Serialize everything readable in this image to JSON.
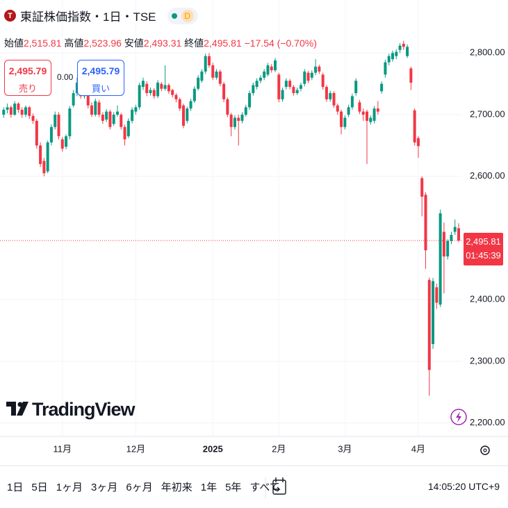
{
  "header": {
    "icon": "T",
    "title": "東証株価指数・1日・TSE",
    "badge": "D",
    "ohlc": [
      {
        "label": "始値",
        "value": "2,515.81"
      },
      {
        "label": "高値",
        "value": "2,523.96"
      },
      {
        "label": "安値",
        "value": "2,493.31"
      },
      {
        "label": "終値",
        "value": "2,495.81"
      }
    ],
    "change": "−17.54 (−0.70%)"
  },
  "trade": {
    "sell_price": "2,495.79",
    "sell_label": "売り",
    "spread": "0.00",
    "buy_price": "2,495.79",
    "buy_label": "買い"
  },
  "logo": "TradingView",
  "toolbar": {
    "periods": [
      "1日",
      "5日",
      "1ヶ月",
      "3ヶ月",
      "6ヶ月",
      "年初来",
      "1年",
      "5年",
      "すべて"
    ],
    "clock": "14:05:20 UTC+9"
  },
  "chart_data": {
    "type": "candlestick",
    "up_color": "#089981",
    "down_color": "#f23645",
    "grid": true,
    "ylim": [
      2177,
      2886
    ],
    "yticks": [
      {
        "value": 2200,
        "label": "2,200.00"
      },
      {
        "value": 2300,
        "label": "2,300.00"
      },
      {
        "value": 2400,
        "label": "2,400.00"
      },
      {
        "value": 2600,
        "label": "2,600.00"
      },
      {
        "value": 2700,
        "label": "2,700.00"
      },
      {
        "value": 2800,
        "label": "2,800.00"
      }
    ],
    "last_price": {
      "value": 2495.81,
      "label": "2,495.81",
      "countdown": "01:45:39"
    },
    "categories": [
      null,
      null,
      null,
      null,
      null,
      null,
      null,
      null,
      null,
      null,
      null,
      null,
      null,
      null,
      null,
      null,
      "11月",
      null,
      null,
      null,
      null,
      null,
      null,
      null,
      null,
      null,
      null,
      null,
      null,
      null,
      null,
      null,
      null,
      null,
      null,
      null,
      "12月",
      null,
      null,
      null,
      null,
      null,
      null,
      null,
      null,
      null,
      null,
      null,
      null,
      null,
      null,
      null,
      null,
      null,
      null,
      null,
      null,
      "2025",
      null,
      null,
      null,
      null,
      null,
      null,
      null,
      null,
      null,
      null,
      null,
      null,
      null,
      null,
      null,
      null,
      null,
      "2月",
      null,
      null,
      null,
      null,
      null,
      null,
      null,
      null,
      null,
      null,
      null,
      null,
      null,
      null,
      null,
      null,
      null,
      "3月",
      null,
      null,
      null,
      null,
      null,
      null,
      null,
      null,
      null,
      null,
      null,
      null,
      null,
      null,
      null,
      null,
      null,
      null,
      null,
      "4月",
      null,
      null,
      null,
      null,
      null,
      null,
      null,
      null,
      null,
      null,
      null
    ],
    "ohlc": [
      [
        2700,
        2712,
        2695,
        2708
      ],
      [
        2708,
        2718,
        2702,
        2712
      ],
      [
        2712,
        2715,
        2695,
        2700
      ],
      [
        2700,
        2722,
        2698,
        2718
      ],
      [
        2718,
        2720,
        2703,
        2708
      ],
      [
        2708,
        2712,
        2695,
        2700
      ],
      [
        2700,
        2715,
        2696,
        2712
      ],
      [
        2712,
        2714,
        2693,
        2698
      ],
      [
        2698,
        2702,
        2685,
        2690
      ],
      [
        2690,
        2693,
        2645,
        2650
      ],
      [
        2650,
        2655,
        2615,
        2620
      ],
      [
        2625,
        2630,
        2600,
        2605
      ],
      [
        2608,
        2658,
        2605,
        2655
      ],
      [
        2655,
        2684,
        2650,
        2680
      ],
      [
        2680,
        2705,
        2676,
        2700
      ],
      [
        2700,
        2704,
        2660,
        2665
      ],
      [
        2660,
        2664,
        2640,
        2645
      ],
      [
        2648,
        2668,
        2644,
        2665
      ],
      [
        2665,
        2714,
        2660,
        2710
      ],
      [
        2715,
        2740,
        2712,
        2735
      ],
      [
        2735,
        2760,
        2730,
        2752
      ],
      [
        2748,
        2752,
        2726,
        2730
      ],
      [
        2730,
        2750,
        2726,
        2745
      ],
      [
        2745,
        2748,
        2710,
        2715
      ],
      [
        2715,
        2720,
        2696,
        2700
      ],
      [
        2700,
        2726,
        2697,
        2722
      ],
      [
        2720,
        2724,
        2696,
        2700
      ],
      [
        2700,
        2704,
        2685,
        2690
      ],
      [
        2692,
        2709,
        2688,
        2705
      ],
      [
        2705,
        2708,
        2676,
        2680
      ],
      [
        2685,
        2704,
        2682,
        2700
      ],
      [
        2700,
        2715,
        2697,
        2705
      ],
      [
        2700,
        2703,
        2676,
        2680
      ],
      [
        2680,
        2684,
        2650,
        2660
      ],
      [
        2665,
        2694,
        2662,
        2690
      ],
      [
        2690,
        2712,
        2686,
        2708
      ],
      [
        2705,
        2716,
        2700,
        2712
      ],
      [
        2712,
        2752,
        2708,
        2748
      ],
      [
        2745,
        2760,
        2740,
        2755
      ],
      [
        2750,
        2754,
        2730,
        2735
      ],
      [
        2735,
        2744,
        2731,
        2740
      ],
      [
        2740,
        2743,
        2726,
        2730
      ],
      [
        2730,
        2756,
        2727,
        2752
      ],
      [
        2750,
        2753,
        2738,
        2742
      ],
      [
        2742,
        2780,
        2739,
        2748
      ],
      [
        2748,
        2751,
        2734,
        2738
      ],
      [
        2740,
        2742,
        2728,
        2732
      ],
      [
        2732,
        2735,
        2720,
        2725
      ],
      [
        2725,
        2728,
        2706,
        2710
      ],
      [
        2715,
        2718,
        2678,
        2682
      ],
      [
        2690,
        2713,
        2686,
        2710
      ],
      [
        2710,
        2726,
        2706,
        2722
      ],
      [
        2722,
        2746,
        2719,
        2742
      ],
      [
        2742,
        2764,
        2739,
        2760
      ],
      [
        2755,
        2774,
        2752,
        2770
      ],
      [
        2770,
        2799,
        2766,
        2795
      ],
      [
        2795,
        2800,
        2776,
        2780
      ],
      [
        2780,
        2784,
        2756,
        2760
      ],
      [
        2760,
        2774,
        2757,
        2770
      ],
      [
        2770,
        2773,
        2746,
        2750
      ],
      [
        2750,
        2753,
        2720,
        2725
      ],
      [
        2725,
        2728,
        2696,
        2700
      ],
      [
        2700,
        2703,
        2665,
        2680
      ],
      [
        2680,
        2699,
        2676,
        2695
      ],
      [
        2695,
        2700,
        2650,
        2690
      ],
      [
        2690,
        2704,
        2686,
        2700
      ],
      [
        2700,
        2716,
        2697,
        2712
      ],
      [
        2712,
        2739,
        2708,
        2735
      ],
      [
        2735,
        2752,
        2731,
        2748
      ],
      [
        2745,
        2759,
        2741,
        2755
      ],
      [
        2755,
        2764,
        2751,
        2760
      ],
      [
        2760,
        2774,
        2756,
        2770
      ],
      [
        2765,
        2784,
        2762,
        2780
      ],
      [
        2778,
        2782,
        2768,
        2772
      ],
      [
        2772,
        2792,
        2769,
        2788
      ],
      [
        2765,
        2768,
        2720,
        2725
      ],
      [
        2725,
        2744,
        2721,
        2740
      ],
      [
        2745,
        2759,
        2741,
        2755
      ],
      [
        2755,
        2758,
        2741,
        2745
      ],
      [
        2745,
        2748,
        2731,
        2735
      ],
      [
        2735,
        2744,
        2732,
        2740
      ],
      [
        2742,
        2752,
        2738,
        2748
      ],
      [
        2750,
        2774,
        2746,
        2770
      ],
      [
        2768,
        2771,
        2751,
        2755
      ],
      [
        2760,
        2772,
        2756,
        2768
      ],
      [
        2768,
        2790,
        2764,
        2778
      ],
      [
        2778,
        2781,
        2766,
        2770
      ],
      [
        2765,
        2768,
        2741,
        2745
      ],
      [
        2745,
        2748,
        2721,
        2725
      ],
      [
        2725,
        2739,
        2721,
        2735
      ],
      [
        2735,
        2738,
        2711,
        2715
      ],
      [
        2715,
        2718,
        2700,
        2705
      ],
      [
        2705,
        2708,
        2668,
        2680
      ],
      [
        2680,
        2699,
        2676,
        2695
      ],
      [
        2700,
        2716,
        2696,
        2712
      ],
      [
        2712,
        2734,
        2708,
        2730
      ],
      [
        2735,
        2759,
        2731,
        2755
      ],
      [
        2720,
        2724,
        2701,
        2705
      ],
      [
        2705,
        2710,
        2690,
        2700
      ],
      [
        2705,
        2708,
        2620,
        2690
      ],
      [
        2688,
        2699,
        2684,
        2695
      ],
      [
        2690,
        2714,
        2686,
        2710
      ],
      [
        2710,
        2722,
        2700,
        2705
      ],
      [
        2738,
        2754,
        2734,
        2750
      ],
      [
        2765,
        2789,
        2760,
        2785
      ],
      [
        2785,
        2799,
        2780,
        2795
      ],
      [
        2790,
        2804,
        2786,
        2800
      ],
      [
        2795,
        2806,
        2790,
        2802
      ],
      [
        2805,
        2816,
        2800,
        2812
      ],
      [
        2815,
        2820,
        2805,
        2810
      ],
      [
        2795,
        2814,
        2792,
        2810
      ],
      [
        2775,
        2778,
        2740,
        2752
      ],
      [
        2707,
        2710,
        2650,
        2655
      ],
      [
        2662,
        2665,
        2630,
        2649
      ],
      [
        2597,
        2600,
        2535,
        2567
      ],
      [
        2570,
        2574,
        2450,
        2480
      ],
      [
        2432,
        2436,
        2244,
        2286
      ],
      [
        2328,
        2435,
        2320,
        2430
      ],
      [
        2420,
        2426,
        2385,
        2395
      ],
      [
        2392,
        2546,
        2388,
        2540
      ],
      [
        2510,
        2525,
        2410,
        2470
      ],
      [
        2470,
        2498,
        2465,
        2495
      ],
      [
        2495,
        2510,
        2490,
        2505
      ],
      [
        2510,
        2530,
        2505,
        2518
      ],
      [
        2515.81,
        2523.96,
        2493.31,
        2495.81
      ]
    ]
  }
}
